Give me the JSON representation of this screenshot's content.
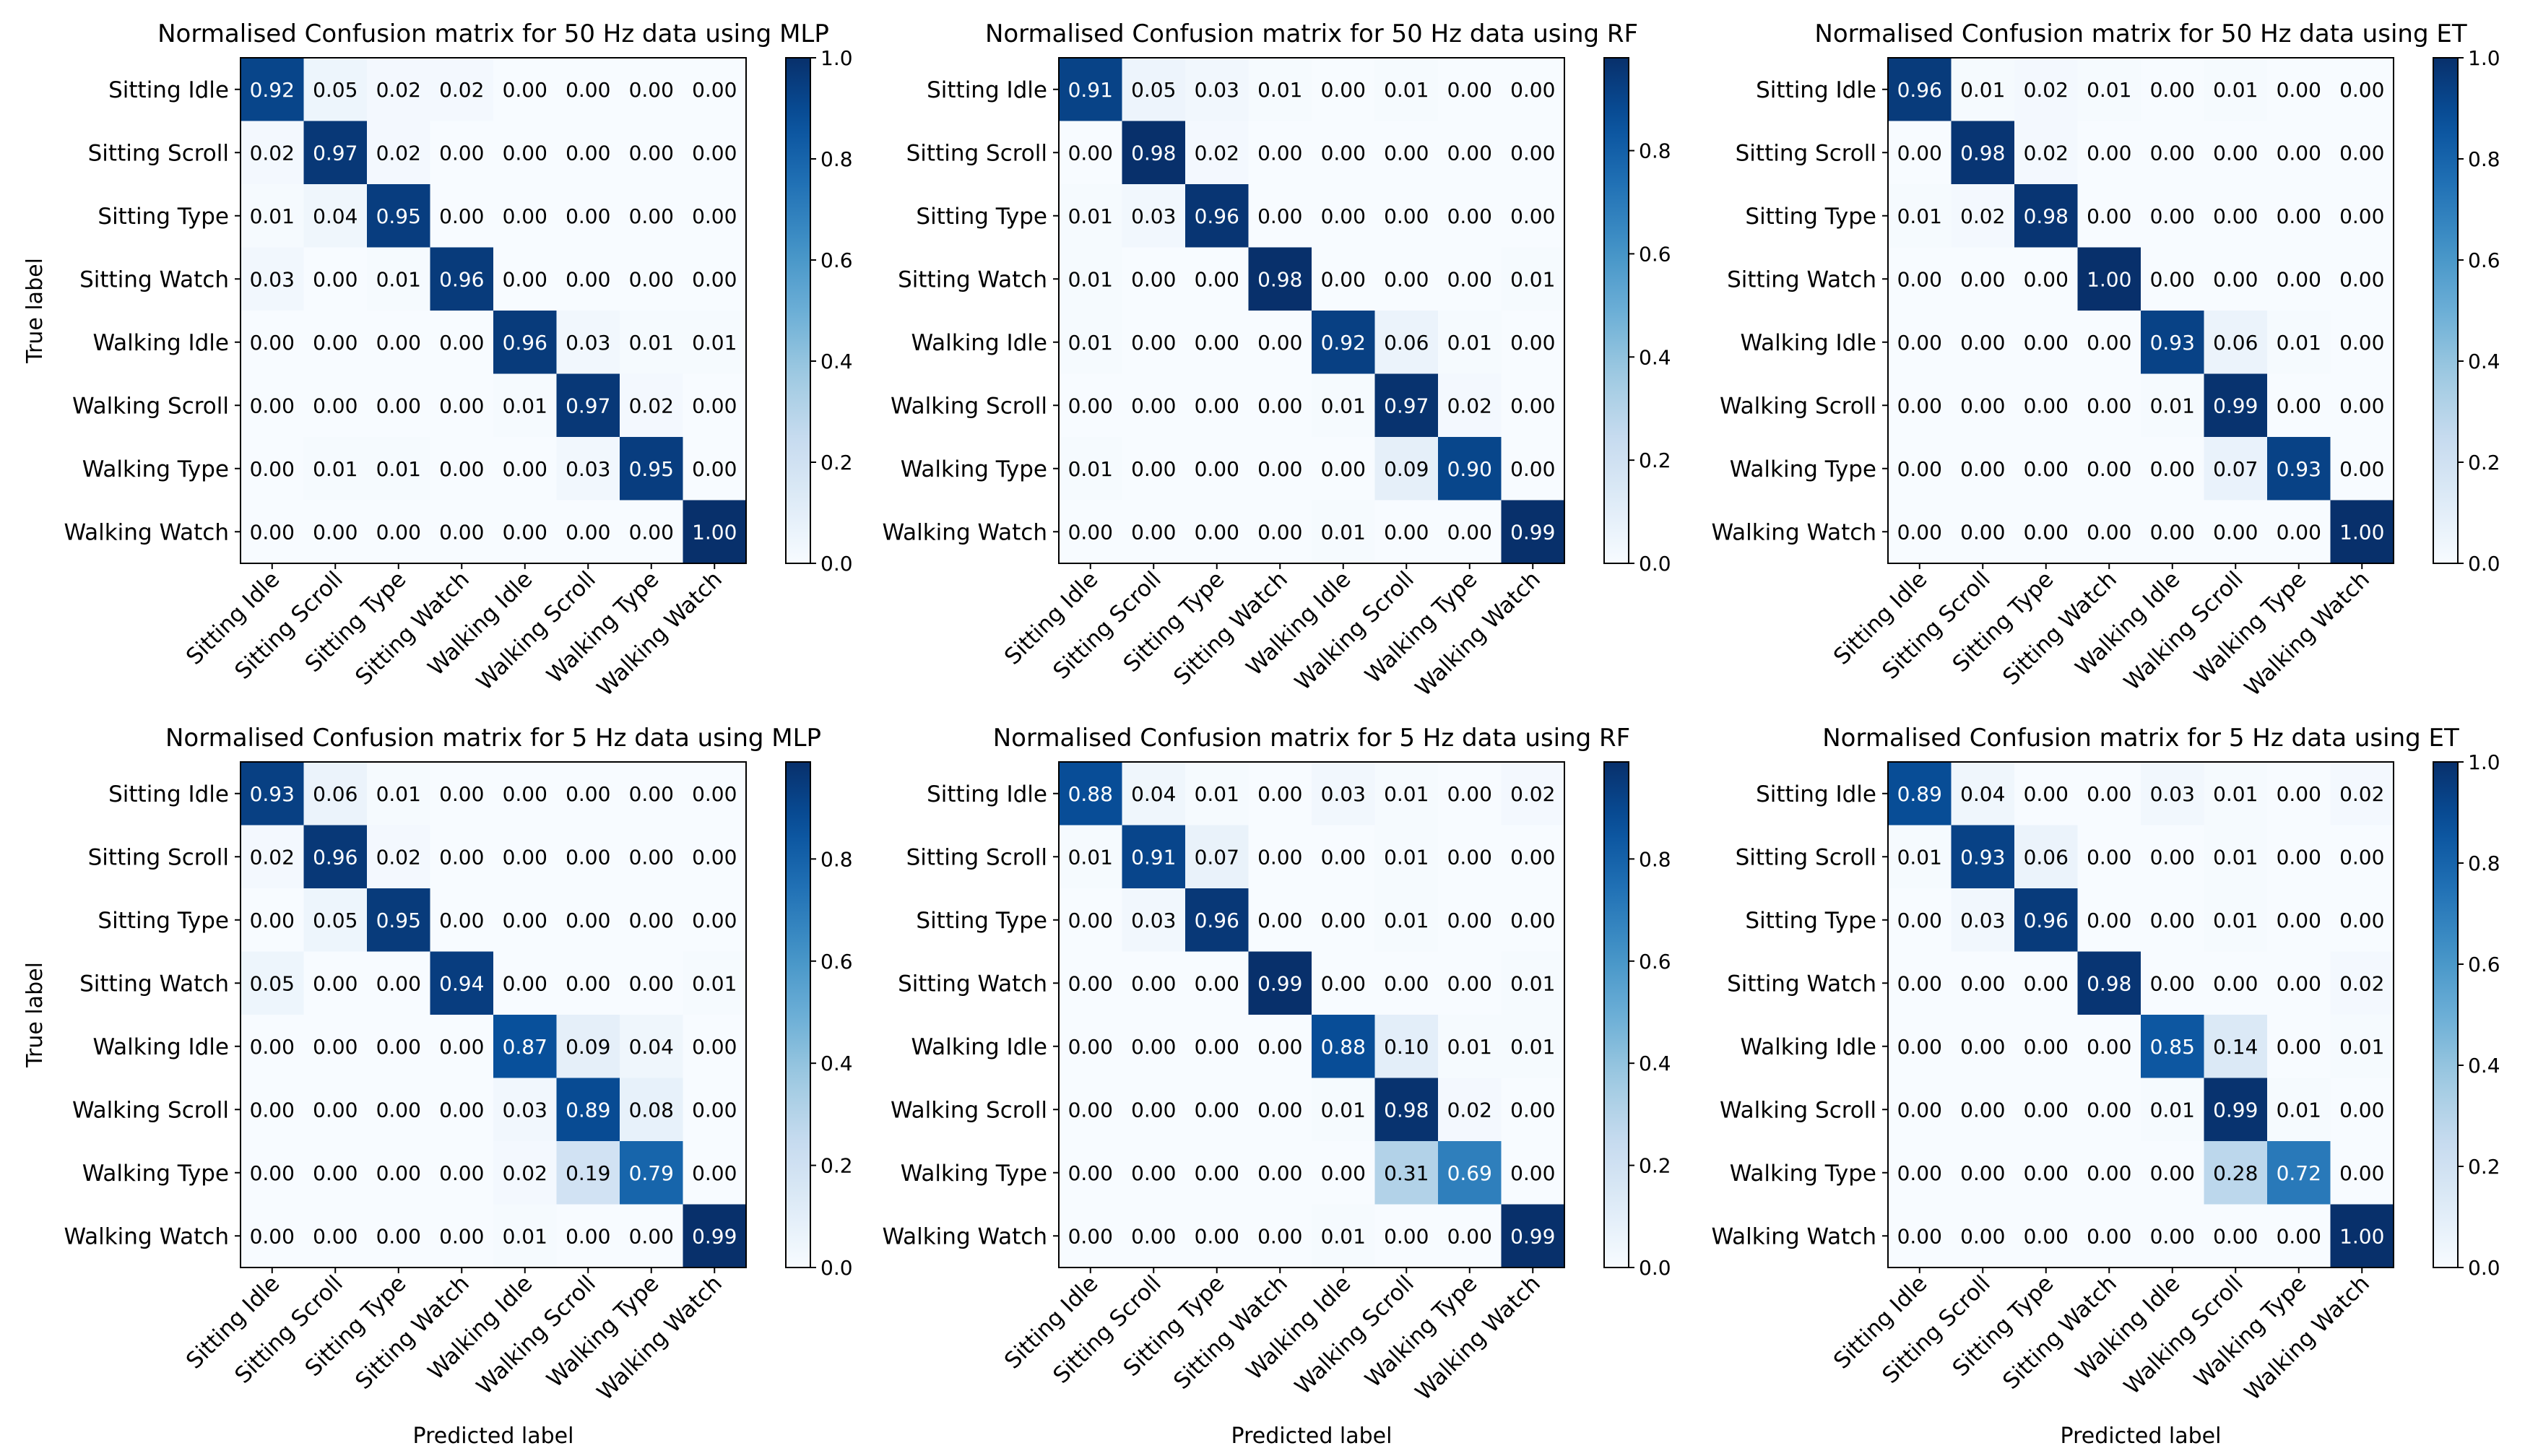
{
  "figure": {
    "x_axis_label": "Predicted label",
    "y_axis_label": "True label"
  },
  "chart_data": [
    {
      "type": "heatmap",
      "title": "Normalised Confusion matrix for 50 Hz data using MLP",
      "xlabel": "",
      "ylabel": "True label",
      "x_categories": [
        "Sitting Idle",
        "Sitting Scroll",
        "Sitting Type",
        "Sitting Watch",
        "Walking Idle",
        "Walking Scroll",
        "Walking Type",
        "Walking Watch"
      ],
      "y_categories": [
        "Sitting Idle",
        "Sitting Scroll",
        "Sitting Type",
        "Sitting Watch",
        "Walking Idle",
        "Walking Scroll",
        "Walking Type",
        "Walking Watch"
      ],
      "matrix": [
        [
          0.92,
          0.05,
          0.02,
          0.02,
          0.0,
          0.0,
          0.0,
          0.0
        ],
        [
          0.02,
          0.97,
          0.02,
          0.0,
          0.0,
          0.0,
          0.0,
          0.0
        ],
        [
          0.01,
          0.04,
          0.95,
          0.0,
          0.0,
          0.0,
          0.0,
          0.0
        ],
        [
          0.03,
          0.0,
          0.01,
          0.96,
          0.0,
          0.0,
          0.0,
          0.0
        ],
        [
          0.0,
          0.0,
          0.0,
          0.0,
          0.96,
          0.03,
          0.01,
          0.01
        ],
        [
          0.0,
          0.0,
          0.0,
          0.0,
          0.01,
          0.97,
          0.02,
          0.0
        ],
        [
          0.0,
          0.01,
          0.01,
          0.0,
          0.0,
          0.03,
          0.95,
          0.0
        ],
        [
          0.0,
          0.0,
          0.0,
          0.0,
          0.0,
          0.0,
          0.0,
          1.0
        ]
      ],
      "colorbar": {
        "range": [
          0,
          1.0
        ],
        "ticks": [
          "0.0",
          "0.2",
          "0.4",
          "0.6",
          "0.8",
          "1.0"
        ],
        "colormap": "Blues"
      }
    },
    {
      "type": "heatmap",
      "title": "Normalised Confusion matrix for 50 Hz data using RF",
      "xlabel": "",
      "ylabel": "",
      "x_categories": [
        "Sitting Idle",
        "Sitting Scroll",
        "Sitting Type",
        "Sitting Watch",
        "Walking Idle",
        "Walking Scroll",
        "Walking Type",
        "Walking Watch"
      ],
      "y_categories": [
        "Sitting Idle",
        "Sitting Scroll",
        "Sitting Type",
        "Sitting Watch",
        "Walking Idle",
        "Walking Scroll",
        "Walking Type",
        "Walking Watch"
      ],
      "matrix": [
        [
          0.91,
          0.05,
          0.03,
          0.01,
          0.0,
          0.01,
          0.0,
          0.0
        ],
        [
          0.0,
          0.98,
          0.02,
          0.0,
          0.0,
          0.0,
          0.0,
          0.0
        ],
        [
          0.01,
          0.03,
          0.96,
          0.0,
          0.0,
          0.0,
          0.0,
          0.0
        ],
        [
          0.01,
          0.0,
          0.0,
          0.98,
          0.0,
          0.0,
          0.0,
          0.01
        ],
        [
          0.01,
          0.0,
          0.0,
          0.0,
          0.92,
          0.06,
          0.01,
          0.0
        ],
        [
          0.0,
          0.0,
          0.0,
          0.0,
          0.01,
          0.97,
          0.02,
          0.0
        ],
        [
          0.01,
          0.0,
          0.0,
          0.0,
          0.0,
          0.09,
          0.9,
          0.0
        ],
        [
          0.0,
          0.0,
          0.0,
          0.0,
          0.01,
          0.0,
          0.0,
          0.99
        ]
      ],
      "colorbar": {
        "range": [
          0,
          0.98
        ],
        "ticks": [
          "0.0",
          "0.2",
          "0.4",
          "0.6",
          "0.8"
        ],
        "colormap": "Blues"
      }
    },
    {
      "type": "heatmap",
      "title": "Normalised Confusion matrix for 50 Hz data using ET",
      "xlabel": "",
      "ylabel": "",
      "x_categories": [
        "Sitting Idle",
        "Sitting Scroll",
        "Sitting Type",
        "Sitting Watch",
        "Walking Idle",
        "Walking Scroll",
        "Walking Type",
        "Walking Watch"
      ],
      "y_categories": [
        "Sitting Idle",
        "Sitting Scroll",
        "Sitting Type",
        "Sitting Watch",
        "Walking Idle",
        "Walking Scroll",
        "Walking Type",
        "Walking Watch"
      ],
      "matrix": [
        [
          0.96,
          0.01,
          0.02,
          0.01,
          0.0,
          0.01,
          0.0,
          0.0
        ],
        [
          0.0,
          0.98,
          0.02,
          0.0,
          0.0,
          0.0,
          0.0,
          0.0
        ],
        [
          0.01,
          0.02,
          0.98,
          0.0,
          0.0,
          0.0,
          0.0,
          0.0
        ],
        [
          0.0,
          0.0,
          0.0,
          1.0,
          0.0,
          0.0,
          0.0,
          0.0
        ],
        [
          0.0,
          0.0,
          0.0,
          0.0,
          0.93,
          0.06,
          0.01,
          0.0
        ],
        [
          0.0,
          0.0,
          0.0,
          0.0,
          0.01,
          0.99,
          0.0,
          0.0
        ],
        [
          0.0,
          0.0,
          0.0,
          0.0,
          0.0,
          0.07,
          0.93,
          0.0
        ],
        [
          0.0,
          0.0,
          0.0,
          0.0,
          0.0,
          0.0,
          0.0,
          1.0
        ]
      ],
      "colorbar": {
        "range": [
          0,
          1.0
        ],
        "ticks": [
          "0.0",
          "0.2",
          "0.4",
          "0.6",
          "0.8",
          "1.0"
        ],
        "colormap": "Blues"
      }
    },
    {
      "type": "heatmap",
      "title": "Normalised Confusion matrix for 5 Hz data using MLP",
      "xlabel": "Predicted label",
      "ylabel": "True label",
      "x_categories": [
        "Sitting Idle",
        "Sitting Scroll",
        "Sitting Type",
        "Sitting Watch",
        "Walking Idle",
        "Walking Scroll",
        "Walking Type",
        "Walking Watch"
      ],
      "y_categories": [
        "Sitting Idle",
        "Sitting Scroll",
        "Sitting Type",
        "Sitting Watch",
        "Walking Idle",
        "Walking Scroll",
        "Walking Type",
        "Walking Watch"
      ],
      "matrix": [
        [
          0.93,
          0.06,
          0.01,
          0.0,
          0.0,
          0.0,
          0.0,
          0.0
        ],
        [
          0.02,
          0.96,
          0.02,
          0.0,
          0.0,
          0.0,
          0.0,
          0.0
        ],
        [
          0.0,
          0.05,
          0.95,
          0.0,
          0.0,
          0.0,
          0.0,
          0.0
        ],
        [
          0.05,
          0.0,
          0.0,
          0.94,
          0.0,
          0.0,
          0.0,
          0.01
        ],
        [
          0.0,
          0.0,
          0.0,
          0.0,
          0.87,
          0.09,
          0.04,
          0.0
        ],
        [
          0.0,
          0.0,
          0.0,
          0.0,
          0.03,
          0.89,
          0.08,
          0.0
        ],
        [
          0.0,
          0.0,
          0.0,
          0.0,
          0.02,
          0.19,
          0.79,
          0.0
        ],
        [
          0.0,
          0.0,
          0.0,
          0.0,
          0.01,
          0.0,
          0.0,
          0.99
        ]
      ],
      "colorbar": {
        "range": [
          0,
          0.99
        ],
        "ticks": [
          "0.0",
          "0.2",
          "0.4",
          "0.6",
          "0.8"
        ],
        "colormap": "Blues"
      }
    },
    {
      "type": "heatmap",
      "title": "Normalised Confusion matrix for 5 Hz data using RF",
      "xlabel": "Predicted label",
      "ylabel": "",
      "x_categories": [
        "Sitting Idle",
        "Sitting Scroll",
        "Sitting Type",
        "Sitting Watch",
        "Walking Idle",
        "Walking Scroll",
        "Walking Type",
        "Walking Watch"
      ],
      "y_categories": [
        "Sitting Idle",
        "Sitting Scroll",
        "Sitting Type",
        "Sitting Watch",
        "Walking Idle",
        "Walking Scroll",
        "Walking Type",
        "Walking Watch"
      ],
      "matrix": [
        [
          0.88,
          0.04,
          0.01,
          0.0,
          0.03,
          0.01,
          0.0,
          0.02
        ],
        [
          0.01,
          0.91,
          0.07,
          0.0,
          0.0,
          0.01,
          0.0,
          0.0
        ],
        [
          0.0,
          0.03,
          0.96,
          0.0,
          0.0,
          0.01,
          0.0,
          0.0
        ],
        [
          0.0,
          0.0,
          0.0,
          0.99,
          0.0,
          0.0,
          0.0,
          0.01
        ],
        [
          0.0,
          0.0,
          0.0,
          0.0,
          0.88,
          0.1,
          0.01,
          0.01
        ],
        [
          0.0,
          0.0,
          0.0,
          0.0,
          0.01,
          0.98,
          0.02,
          0.0
        ],
        [
          0.0,
          0.0,
          0.0,
          0.0,
          0.0,
          0.31,
          0.69,
          0.0
        ],
        [
          0.0,
          0.0,
          0.0,
          0.0,
          0.01,
          0.0,
          0.0,
          0.99
        ]
      ],
      "colorbar": {
        "range": [
          0,
          0.99
        ],
        "ticks": [
          "0.0",
          "0.2",
          "0.4",
          "0.6",
          "0.8"
        ],
        "colormap": "Blues"
      }
    },
    {
      "type": "heatmap",
      "title": "Normalised Confusion matrix for 5 Hz data using ET",
      "xlabel": "Predicted label",
      "ylabel": "",
      "x_categories": [
        "Sitting Idle",
        "Sitting Scroll",
        "Sitting Type",
        "Sitting Watch",
        "Walking Idle",
        "Walking Scroll",
        "Walking Type",
        "Walking Watch"
      ],
      "y_categories": [
        "Sitting Idle",
        "Sitting Scroll",
        "Sitting Type",
        "Sitting Watch",
        "Walking Idle",
        "Walking Scroll",
        "Walking Type",
        "Walking Watch"
      ],
      "matrix": [
        [
          0.89,
          0.04,
          0.0,
          0.0,
          0.03,
          0.01,
          0.0,
          0.02
        ],
        [
          0.01,
          0.93,
          0.06,
          0.0,
          0.0,
          0.01,
          0.0,
          0.0
        ],
        [
          0.0,
          0.03,
          0.96,
          0.0,
          0.0,
          0.01,
          0.0,
          0.0
        ],
        [
          0.0,
          0.0,
          0.0,
          0.98,
          0.0,
          0.0,
          0.0,
          0.02
        ],
        [
          0.0,
          0.0,
          0.0,
          0.0,
          0.85,
          0.14,
          0.0,
          0.01
        ],
        [
          0.0,
          0.0,
          0.0,
          0.0,
          0.01,
          0.99,
          0.01,
          0.0
        ],
        [
          0.0,
          0.0,
          0.0,
          0.0,
          0.0,
          0.28,
          0.72,
          0.0
        ],
        [
          0.0,
          0.0,
          0.0,
          0.0,
          0.0,
          0.0,
          0.0,
          1.0
        ]
      ],
      "colorbar": {
        "range": [
          0,
          1.0
        ],
        "ticks": [
          "0.0",
          "0.2",
          "0.4",
          "0.6",
          "0.8",
          "1.0"
        ],
        "colormap": "Blues"
      }
    }
  ]
}
